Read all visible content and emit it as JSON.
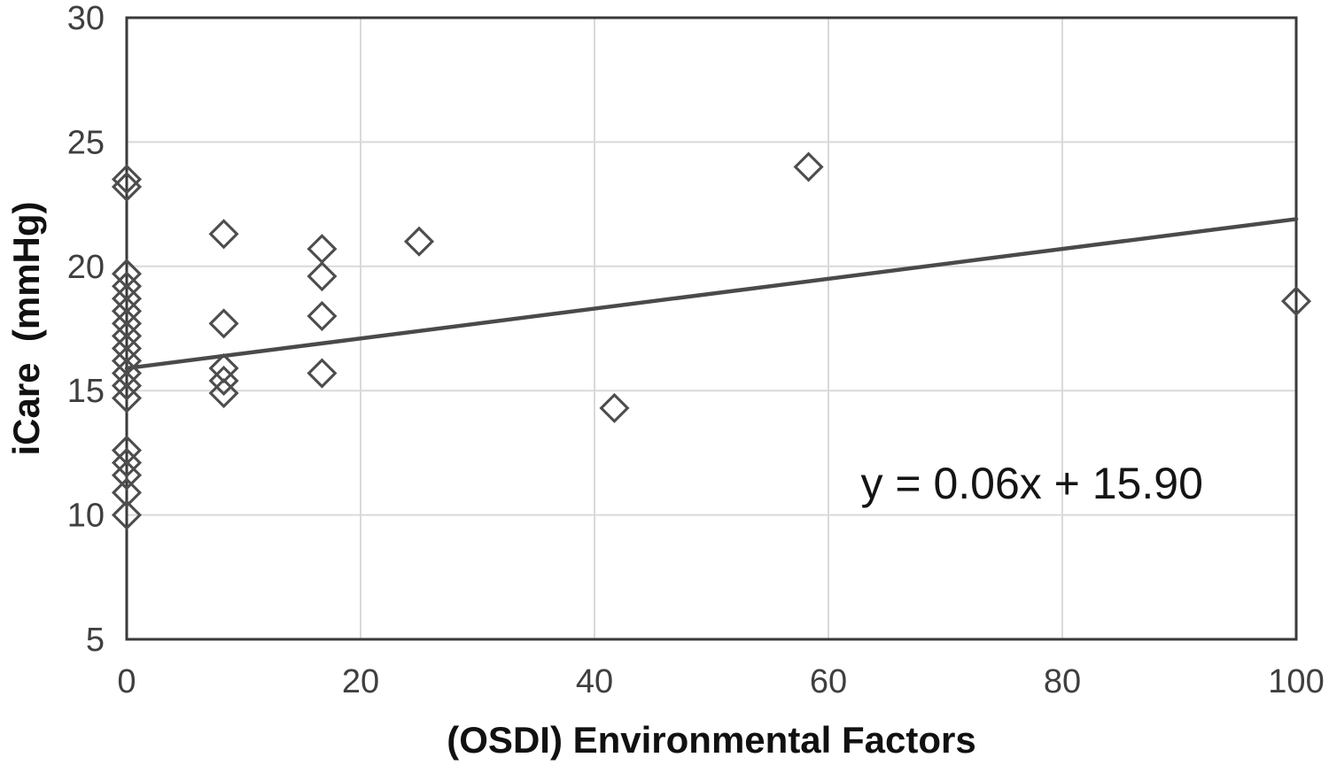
{
  "figure": {
    "background": "#ffffff"
  },
  "chart_data": {
    "type": "scatter",
    "title": "",
    "xlabel": "(OSDI) Environmental Factors",
    "ylabel": "iCare  (mmHg)",
    "xlim": [
      0,
      100
    ],
    "ylim": [
      5,
      30
    ],
    "xticks": [
      0,
      20,
      40,
      60,
      80,
      100
    ],
    "yticks": [
      5,
      10,
      15,
      20,
      25,
      30
    ],
    "grid": true,
    "legend": false,
    "marker": "open-diamond",
    "series": [
      {
        "name": "iCare IOP vs OSDI environmental factors",
        "points": [
          [
            0,
            23.5
          ],
          [
            0,
            23.2
          ],
          [
            0,
            19.7
          ],
          [
            0,
            19.2
          ],
          [
            0,
            18.7
          ],
          [
            0,
            18.2
          ],
          [
            0,
            17.7
          ],
          [
            0,
            17.2
          ],
          [
            0,
            16.7
          ],
          [
            0,
            16.2
          ],
          [
            0,
            15.7
          ],
          [
            0,
            15.2
          ],
          [
            0,
            14.7
          ],
          [
            0,
            12.6
          ],
          [
            0,
            12.1
          ],
          [
            0,
            11.6
          ],
          [
            0,
            10.9
          ],
          [
            0,
            10.0
          ],
          [
            8.3,
            21.3
          ],
          [
            8.3,
            17.7
          ],
          [
            8.3,
            15.9
          ],
          [
            8.3,
            15.4
          ],
          [
            8.3,
            14.9
          ],
          [
            16.7,
            20.7
          ],
          [
            16.7,
            19.6
          ],
          [
            16.7,
            18.0
          ],
          [
            16.7,
            15.7
          ],
          [
            25,
            21.0
          ],
          [
            41.7,
            14.3
          ],
          [
            58.3,
            24.0
          ],
          [
            100,
            18.6
          ]
        ]
      }
    ],
    "trendline": {
      "slope": 0.06,
      "intercept": 15.9,
      "x_start": 0,
      "x_end": 100
    },
    "annotation": {
      "text": "y = 0.06x + 15.90",
      "x": 77.4,
      "y": 11.3
    },
    "colors": {
      "marker": "#4d4d4d",
      "trendline": "#4a4a4a",
      "gridline": "#d9d9d9",
      "plot_border": "#3a3a3a",
      "tick_label": "#3f3f3f",
      "axis_title": "#111111",
      "annotation_text": "#141414"
    }
  }
}
